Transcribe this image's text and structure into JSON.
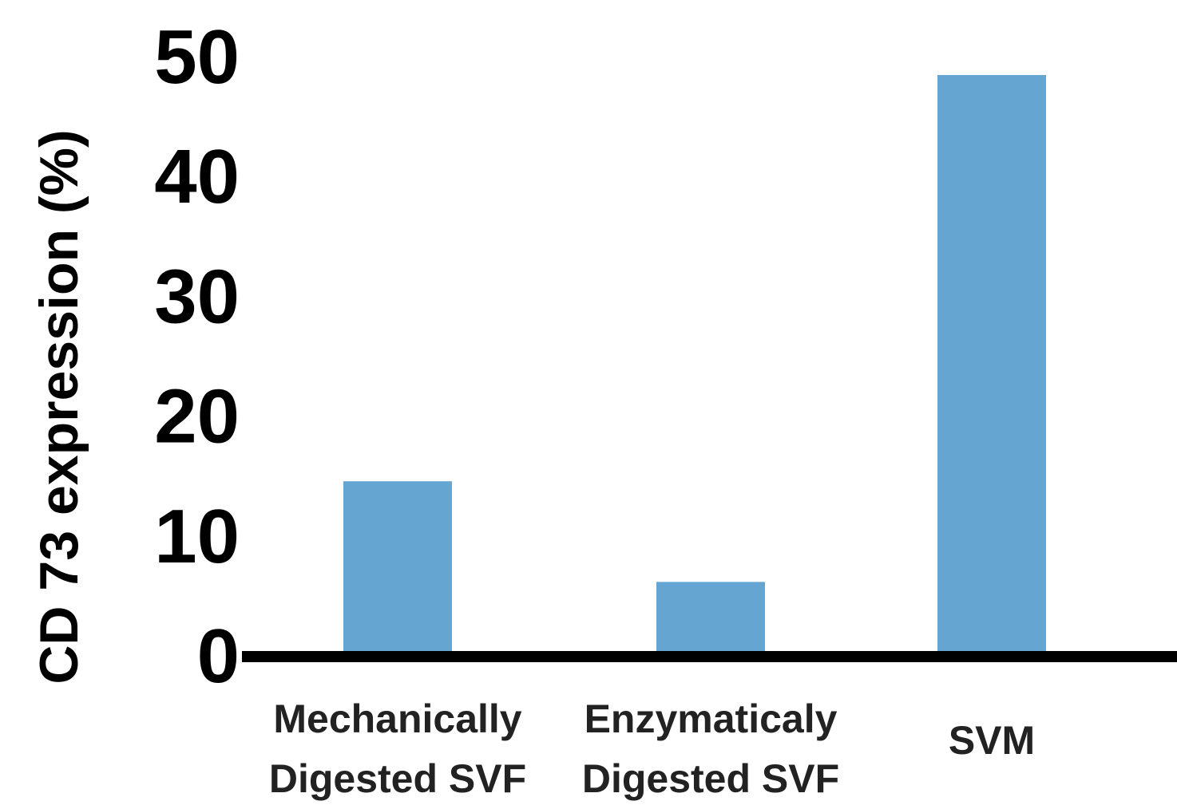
{
  "chart_data": {
    "type": "bar",
    "title": "",
    "xlabel": "",
    "ylabel": "CD 73 expression (%)",
    "categories": [
      [
        "Mechanically",
        "Digested SVF"
      ],
      [
        "Enzymaticaly",
        "Digested SVF"
      ],
      [
        "SVM"
      ]
    ],
    "values": [
      14.5,
      6.1,
      48.4
    ],
    "ylim": [
      0,
      50
    ],
    "yticks": [
      0,
      10,
      20,
      30,
      40,
      50
    ],
    "grid": false,
    "legend": "none",
    "bar_color": "#64a5d2",
    "axis_color": "#000000"
  }
}
